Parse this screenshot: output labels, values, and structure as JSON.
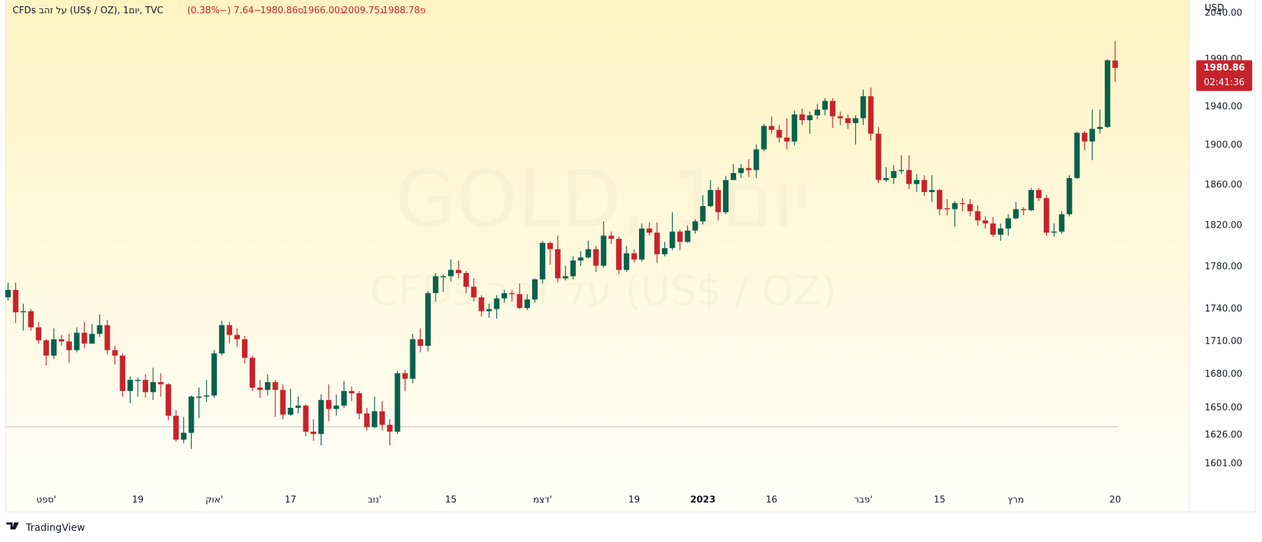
{
  "header": {
    "symbol": "CFDs על זהב (US$ / OZ), 1יום, TVC",
    "ohlc": [
      {
        "label": "פ",
        "value": "1988.78"
      },
      {
        "label": "ג",
        "value": "2009.75"
      },
      {
        "label": "נ",
        "value": "1966.00"
      },
      {
        "label": "ס",
        "value": "1980.86"
      }
    ],
    "change": "−7.64 (−0.38%)"
  },
  "watermark": {
    "line1": "GOLD, 1יום",
    "line2": "CFDs על זהב (US$ / OZ)"
  },
  "currency": "USD",
  "last_price": {
    "price": "1980.86",
    "countdown": "02:41:36"
  },
  "brand": "TradingView",
  "chart_data": {
    "type": "candlestick",
    "log": true,
    "grid": false,
    "up_color": "#08614a",
    "down_color": "#c8232c",
    "categories": [
      null,
      null,
      null,
      null,
      null,
      "ספט'",
      null,
      null,
      null,
      null,
      null,
      null,
      null,
      null,
      null,
      null,
      null,
      "19",
      null,
      null,
      null,
      null,
      null,
      null,
      null,
      null,
      null,
      "אוק'",
      null,
      null,
      null,
      null,
      null,
      null,
      null,
      null,
      null,
      "17",
      null,
      null,
      null,
      null,
      null,
      null,
      null,
      null,
      null,
      null,
      "נוב'",
      null,
      null,
      null,
      null,
      null,
      null,
      null,
      null,
      null,
      "15",
      null,
      null,
      null,
      null,
      null,
      null,
      null,
      null,
      null,
      null,
      null,
      "דצמ'",
      null,
      null,
      null,
      null,
      null,
      null,
      null,
      null,
      null,
      null,
      null,
      "19",
      null,
      null,
      null,
      null,
      null,
      null,
      null,
      null,
      "2023",
      null,
      null,
      null,
      null,
      null,
      null,
      null,
      null,
      "16",
      null,
      null,
      null,
      null,
      null,
      null,
      null,
      null,
      null,
      null,
      null,
      "פבר'",
      null,
      null,
      null,
      null,
      null,
      null,
      null,
      null,
      null,
      "15",
      null,
      null,
      null,
      null,
      null,
      null,
      null,
      null,
      null,
      "מרץ",
      null,
      null,
      null,
      null,
      null,
      null,
      null,
      null,
      null,
      null,
      null,
      null,
      "20"
    ],
    "bold_categories": [
      "2023"
    ],
    "open": [
      1751,
      1758,
      1737,
      1738,
      1723,
      1711,
      1697,
      1712,
      1710,
      1702,
      1718,
      1708,
      1717,
      1725,
      1702,
      1697,
      1665,
      1674,
      1675,
      1664,
      1673,
      1671,
      1643,
      1622,
      1628,
      1659,
      1660,
      1661,
      1699,
      1725,
      1716,
      1712,
      1695,
      1668,
      1666,
      1673,
      1666,
      1644,
      1650,
      1652,
      1629,
      1627,
      1657,
      1649,
      1652,
      1665,
      1663,
      1645,
      1633,
      1647,
      1635,
      1629,
      1681,
      1676,
      1712,
      1706,
      1755,
      1770,
      1771,
      1777,
      1774,
      1761,
      1751,
      1738,
      1740,
      1750,
      1755,
      1754,
      1741,
      1749,
      1768,
      1803,
      1797,
      1769,
      1771,
      1786,
      1789,
      1797,
      1781,
      1810,
      1807,
      1777,
      1793,
      1787,
      1817,
      1813,
      1792,
      1798,
      1814,
      1804,
      1815,
      1824,
      1839,
      1855,
      1833,
      1865,
      1872,
      1877,
      1875,
      1896,
      1920,
      1916,
      1908,
      1904,
      1932,
      1926,
      1931,
      1937,
      1946,
      1930,
      1928,
      1923,
      1928,
      1951,
      1912,
      1865,
      1867,
      1874,
      1875,
      1861,
      1865,
      1853,
      1855,
      1837,
      1836,
      1842,
      1841,
      1834,
      1825,
      1822,
      1811,
      1817,
      1827,
      1836,
      1835,
      1855,
      1847,
      1813,
      1814,
      1831,
      1867,
      1913,
      1904,
      1917,
      1919,
      1988.78
    ],
    "high": [
      1765,
      1765,
      1745,
      1740,
      1728,
      1712,
      1722,
      1716,
      1717,
      1723,
      1728,
      1726,
      1735,
      1730,
      1706,
      1699,
      1678,
      1677,
      1680,
      1686,
      1681,
      1672,
      1648,
      1642,
      1661,
      1668,
      1675,
      1702,
      1729,
      1728,
      1722,
      1715,
      1697,
      1675,
      1680,
      1675,
      1671,
      1667,
      1660,
      1653,
      1640,
      1662,
      1671,
      1662,
      1674,
      1669,
      1665,
      1650,
      1660,
      1656,
      1640,
      1683,
      1684,
      1717,
      1722,
      1757,
      1774,
      1773,
      1787,
      1786,
      1776,
      1769,
      1753,
      1745,
      1753,
      1758,
      1758,
      1764,
      1754,
      1769,
      1805,
      1804,
      1810,
      1781,
      1790,
      1795,
      1805,
      1800,
      1824,
      1814,
      1809,
      1800,
      1797,
      1822,
      1823,
      1823,
      1804,
      1833,
      1816,
      1820,
      1826,
      1850,
      1865,
      1858,
      1869,
      1881,
      1881,
      1886,
      1901,
      1922,
      1930,
      1921,
      1928,
      1936,
      1938,
      1935,
      1943,
      1949,
      1949,
      1935,
      1932,
      1931,
      1958,
      1960,
      1919,
      1878,
      1880,
      1890,
      1890,
      1871,
      1870,
      1870,
      1856,
      1846,
      1844,
      1847,
      1846,
      1840,
      1829,
      1828,
      1822,
      1831,
      1843,
      1838,
      1857,
      1857,
      1850,
      1822,
      1834,
      1870,
      1914,
      1915,
      1937,
      1937,
      1990,
      2009.75
    ],
    "low": [
      1748,
      1727,
      1720,
      1720,
      1708,
      1688,
      1694,
      1706,
      1691,
      1700,
      1704,
      1708,
      1714,
      1698,
      1689,
      1660,
      1654,
      1660,
      1659,
      1657,
      1660,
      1639,
      1620,
      1619,
      1614,
      1641,
      1655,
      1659,
      1697,
      1708,
      1705,
      1690,
      1665,
      1659,
      1661,
      1642,
      1640,
      1643,
      1645,
      1625,
      1621,
      1617,
      1638,
      1643,
      1650,
      1656,
      1640,
      1630,
      1632,
      1630,
      1617,
      1627,
      1665,
      1672,
      1700,
      1701,
      1747,
      1756,
      1766,
      1769,
      1755,
      1747,
      1733,
      1732,
      1731,
      1746,
      1747,
      1740,
      1739,
      1746,
      1764,
      1782,
      1765,
      1767,
      1768,
      1781,
      1788,
      1775,
      1779,
      1802,
      1773,
      1775,
      1784,
      1785,
      1810,
      1784,
      1790,
      1796,
      1796,
      1803,
      1812,
      1821,
      1838,
      1825,
      1831,
      1865,
      1867,
      1868,
      1867,
      1894,
      1912,
      1903,
      1896,
      1900,
      1921,
      1912,
      1927,
      1931,
      1918,
      1921,
      1917,
      1901,
      1921,
      1905,
      1862,
      1863,
      1861,
      1871,
      1856,
      1853,
      1849,
      1843,
      1830,
      1830,
      1819,
      1834,
      1829,
      1820,
      1817,
      1809,
      1805,
      1810,
      1826,
      1830,
      1834,
      1844,
      1810,
      1809,
      1812,
      1829,
      1866,
      1895,
      1885,
      1912,
      1918,
      1966
    ],
    "close": [
      1758,
      1737,
      1738,
      1723,
      1711,
      1697,
      1712,
      1710,
      1702,
      1718,
      1708,
      1717,
      1725,
      1702,
      1697,
      1665,
      1675,
      1675,
      1664,
      1673,
      1671,
      1643,
      1622,
      1628,
      1660,
      1660,
      1661,
      1699,
      1725,
      1716,
      1712,
      1695,
      1668,
      1666,
      1673,
      1666,
      1644,
      1650,
      1652,
      1629,
      1627,
      1657,
      1649,
      1652,
      1665,
      1663,
      1645,
      1633,
      1647,
      1635,
      1629,
      1681,
      1676,
      1712,
      1706,
      1755,
      1771,
      1771,
      1777,
      1774,
      1761,
      1751,
      1738,
      1740,
      1750,
      1755,
      1754,
      1741,
      1749,
      1768,
      1803,
      1797,
      1769,
      1771,
      1786,
      1789,
      1797,
      1781,
      1810,
      1807,
      1777,
      1793,
      1787,
      1817,
      1813,
      1792,
      1798,
      1814,
      1804,
      1815,
      1824,
      1839,
      1855,
      1833,
      1865,
      1872,
      1877,
      1875,
      1896,
      1920,
      1916,
      1908,
      1904,
      1932,
      1926,
      1931,
      1937,
      1946,
      1930,
      1928,
      1923,
      1928,
      1951,
      1912,
      1865,
      1867,
      1874,
      1875,
      1861,
      1865,
      1853,
      1855,
      1836,
      1836,
      1842,
      1841,
      1834,
      1825,
      1822,
      1811,
      1817,
      1827,
      1836,
      1835,
      1855,
      1847,
      1813,
      1814,
      1831,
      1867,
      1913,
      1904,
      1917,
      1919,
      1989,
      1980.86
    ],
    "ylim": [
      1582,
      2053
    ],
    "yticks": [
      {
        "value": 2040,
        "label": "2040.00"
      },
      {
        "value": 1990,
        "label": "1990.00"
      },
      {
        "value": 1940,
        "label": "1940.00"
      },
      {
        "value": 1900,
        "label": "1900.00"
      },
      {
        "value": 1860,
        "label": "1860.00"
      },
      {
        "value": 1820,
        "label": "1820.00"
      },
      {
        "value": 1780,
        "label": "1780.00"
      },
      {
        "value": 1740,
        "label": "1740.00"
      },
      {
        "value": 1710,
        "label": "1710.00"
      },
      {
        "value": 1680,
        "label": "1680.00"
      },
      {
        "value": 1650,
        "label": "1650.00"
      },
      {
        "value": 1626,
        "label": "1626.00"
      },
      {
        "value": 1601,
        "label": "1601.00"
      }
    ]
  }
}
